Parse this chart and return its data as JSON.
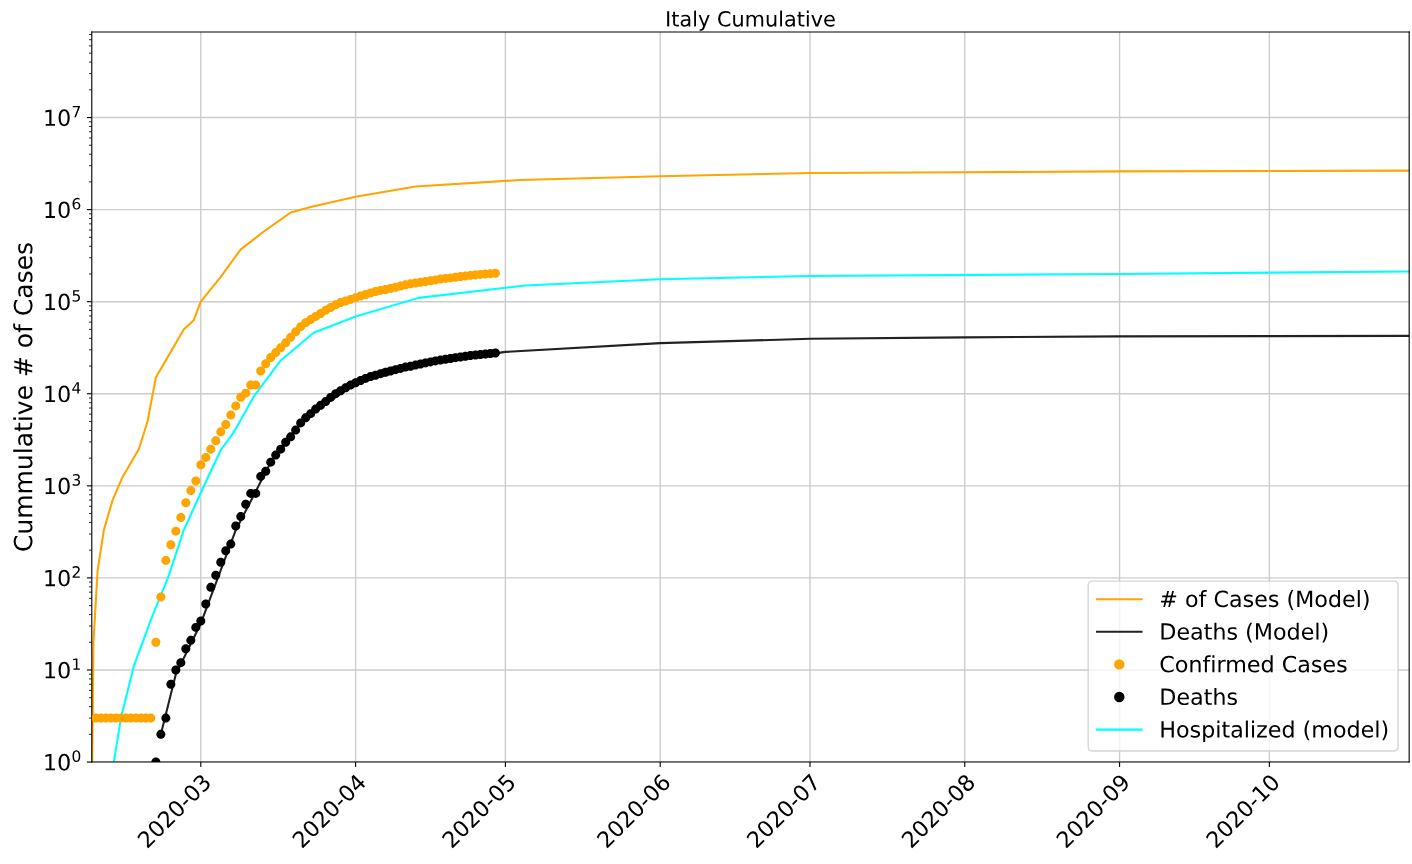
{
  "chart_data": {
    "type": "line",
    "title": "Italy Cumulative",
    "ylabel": "Cummulative # of Cases",
    "log": "y",
    "grid": true,
    "legend": "bottom right",
    "xlim": [
      "2020-02-08T04:00",
      "2020-10-29"
    ],
    "xticks": [
      {
        "value": "2020-03-01",
        "label": "2020-03"
      },
      {
        "value": "2020-04-01",
        "label": "2020-04"
      },
      {
        "value": "2020-05-01",
        "label": "2020-05"
      },
      {
        "value": "2020-06-01",
        "label": "2020-06"
      },
      {
        "value": "2020-07-01",
        "label": "2020-07"
      },
      {
        "value": "2020-08-01",
        "label": "2020-08"
      },
      {
        "value": "2020-09-01",
        "label": "2020-09"
      },
      {
        "value": "2020-10-01",
        "label": "2020-10"
      }
    ],
    "ylim": [
      1,
      85000000
    ],
    "yticks": [
      {
        "value": 1,
        "label": "10$^{0}$"
      },
      {
        "value": 10,
        "label": "10$^{1}$"
      },
      {
        "value": 100,
        "label": "10$^{2}$"
      },
      {
        "value": 1000,
        "label": "10$^{3}$"
      },
      {
        "value": 10000,
        "label": "10$^{4}$"
      },
      {
        "value": 100000,
        "label": "10$^{5}$"
      },
      {
        "value": 1000000,
        "label": "10$^{6}$"
      },
      {
        "value": 10000000,
        "label": "10$^{7}$"
      }
    ],
    "series": [
      {
        "name": "# of Cases (Model)",
        "color": "#ffa500",
        "x": [
          "2020-02-08T06:00",
          "2020-02-08T12:00",
          "2020-02-09T08:00",
          "2020-02-10T14:00",
          "2020-02-12T08:00",
          "2020-02-14T08:00",
          "2020-02-17T14:00",
          "2020-02-19T08:00",
          "2020-02-21",
          "2020-02-26T14:00",
          "2020-02-28T14:00",
          "2020-03-01",
          "2020-03-05",
          "2020-03-09",
          "2020-03-14",
          "2020-03-19",
          "2020-03-23",
          "2020-04-01",
          "2020-04-13",
          "2020-05-04",
          "2020-06-01",
          "2020-07-01",
          "2020-08-01",
          "2020-09-01",
          "2020-10-29"
        ],
        "values": [
          1,
          20,
          120,
          330,
          700,
          1250,
          2500,
          5000,
          15000,
          50000,
          63000,
          100000,
          186000,
          370000,
          600000,
          930000,
          1070000,
          1380000,
          1780000,
          2100000,
          2300000,
          2500000,
          2550000,
          2600000,
          2650000
        ]
      },
      {
        "name": "Deaths (Model)",
        "color": "#222222",
        "x": [
          "2020-02-22",
          "2020-02-25",
          "2020-03-01",
          "2020-03-08",
          "2020-03-15",
          "2020-03-22",
          "2020-04-01",
          "2020-04-15",
          "2020-05-01",
          "2020-06-01",
          "2020-07-01",
          "2020-08-01",
          "2020-09-01",
          "2020-10-29"
        ],
        "values": [
          2,
          9,
          32,
          330,
          1800,
          5500,
          13000,
          21000,
          28500,
          35500,
          39500,
          41000,
          42000,
          42500
        ]
      },
      {
        "name": "Confirmed Cases",
        "type": "scatter",
        "color": "#ffa500",
        "x": [
          "2020-02-09",
          "2020-02-10",
          "2020-02-11",
          "2020-02-12",
          "2020-02-13",
          "2020-02-14",
          "2020-02-15",
          "2020-02-16",
          "2020-02-17",
          "2020-02-18",
          "2020-02-19",
          "2020-02-20",
          "2020-02-21",
          "2020-02-22",
          "2020-02-23",
          "2020-02-24",
          "2020-02-25",
          "2020-02-26",
          "2020-02-27",
          "2020-02-28",
          "2020-02-29",
          "2020-03-01",
          "2020-03-02",
          "2020-03-03",
          "2020-03-04",
          "2020-03-05",
          "2020-03-06",
          "2020-03-07",
          "2020-03-08",
          "2020-03-09",
          "2020-03-10",
          "2020-03-11",
          "2020-03-12",
          "2020-03-13",
          "2020-03-14",
          "2020-03-15",
          "2020-03-16",
          "2020-03-17",
          "2020-03-18",
          "2020-03-19",
          "2020-03-20",
          "2020-03-21",
          "2020-03-22",
          "2020-03-23",
          "2020-03-24",
          "2020-03-25",
          "2020-03-26",
          "2020-03-27",
          "2020-03-28",
          "2020-03-29",
          "2020-03-30",
          "2020-03-31",
          "2020-04-01",
          "2020-04-02",
          "2020-04-03",
          "2020-04-04",
          "2020-04-05",
          "2020-04-06",
          "2020-04-07",
          "2020-04-08",
          "2020-04-09",
          "2020-04-10",
          "2020-04-11",
          "2020-04-12",
          "2020-04-13",
          "2020-04-14",
          "2020-04-15",
          "2020-04-16",
          "2020-04-17",
          "2020-04-18",
          "2020-04-19",
          "2020-04-20",
          "2020-04-21",
          "2020-04-22",
          "2020-04-23",
          "2020-04-24",
          "2020-04-25",
          "2020-04-26",
          "2020-04-27",
          "2020-04-28",
          "2020-04-29"
        ],
        "values": [
          3,
          3,
          3,
          3,
          3,
          3,
          3,
          3,
          3,
          3,
          3,
          3,
          20,
          62,
          155,
          229,
          322,
          453,
          655,
          888,
          1128,
          1694,
          2036,
          2502,
          3089,
          3858,
          4636,
          5883,
          7375,
          9172,
          10149,
          12462,
          12462,
          17660,
          21157,
          24747,
          27980,
          31506,
          35713,
          41035,
          47021,
          53578,
          59138,
          63927,
          69176,
          74386,
          80589,
          86498,
          92472,
          97689,
          101739,
          105792,
          110574,
          115242,
          119827,
          124632,
          128948,
          132547,
          135586,
          139422,
          143626,
          147577,
          152271,
          156363,
          159516,
          162488,
          165155,
          168941,
          172434,
          175925,
          178972,
          181228,
          183957,
          187327,
          189973,
          192994,
          195351,
          197675,
          199414,
          201505,
          203591
        ]
      },
      {
        "name": "Deaths",
        "type": "scatter",
        "color": "#000000",
        "x": [
          "2020-02-21",
          "2020-02-22",
          "2020-02-23",
          "2020-02-24",
          "2020-02-25",
          "2020-02-26",
          "2020-02-27",
          "2020-02-28",
          "2020-02-29",
          "2020-03-01",
          "2020-03-02",
          "2020-03-03",
          "2020-03-04",
          "2020-03-05",
          "2020-03-06",
          "2020-03-07",
          "2020-03-08",
          "2020-03-09",
          "2020-03-10",
          "2020-03-11",
          "2020-03-12",
          "2020-03-13",
          "2020-03-14",
          "2020-03-15",
          "2020-03-16",
          "2020-03-17",
          "2020-03-18",
          "2020-03-19",
          "2020-03-20",
          "2020-03-21",
          "2020-03-22",
          "2020-03-23",
          "2020-03-24",
          "2020-03-25",
          "2020-03-26",
          "2020-03-27",
          "2020-03-28",
          "2020-03-29",
          "2020-03-30",
          "2020-03-31",
          "2020-04-01",
          "2020-04-02",
          "2020-04-03",
          "2020-04-04",
          "2020-04-05",
          "2020-04-06",
          "2020-04-07",
          "2020-04-08",
          "2020-04-09",
          "2020-04-10",
          "2020-04-11",
          "2020-04-12",
          "2020-04-13",
          "2020-04-14",
          "2020-04-15",
          "2020-04-16",
          "2020-04-17",
          "2020-04-18",
          "2020-04-19",
          "2020-04-20",
          "2020-04-21",
          "2020-04-22",
          "2020-04-23",
          "2020-04-24",
          "2020-04-25",
          "2020-04-26",
          "2020-04-27",
          "2020-04-28",
          "2020-04-29"
        ],
        "values": [
          1,
          2,
          3,
          7,
          10,
          12,
          17,
          21,
          29,
          34,
          52,
          79,
          107,
          148,
          197,
          233,
          366,
          463,
          631,
          827,
          827,
          1266,
          1441,
          1809,
          2158,
          2503,
          2978,
          3405,
          4032,
          4825,
          5476,
          6077,
          6820,
          7503,
          8215,
          9134,
          10023,
          10779,
          11591,
          12428,
          13155,
          13915,
          14681,
          15362,
          15887,
          16523,
          17127,
          17669,
          18279,
          18849,
          19468,
          19899,
          20465,
          21067,
          21645,
          22170,
          22745,
          23227,
          23660,
          24114,
          24648,
          25085,
          25549,
          25969,
          26384,
          26644,
          26977,
          27359,
          27682
        ]
      },
      {
        "name": "Hospitalized (model)",
        "color": "#00ffff",
        "x": [
          "2020-02-12T14:00",
          "2020-02-14",
          "2020-02-16T14:00",
          "2020-02-20",
          "2020-02-23T10:00",
          "2020-02-26T14:00",
          "2020-03-01",
          "2020-03-05",
          "2020-03-07T14:00",
          "2020-03-11T14:00",
          "2020-03-17",
          "2020-03-23T14:00",
          "2020-04-01",
          "2020-04-13T14:00",
          "2020-05-05",
          "2020-06-01",
          "2020-07-01",
          "2020-09-01",
          "2020-10-29"
        ],
        "values": [
          1,
          3,
          11,
          35,
          100,
          330,
          840,
          2450,
          3800,
          9300,
          23000,
          46000,
          69000,
          110000,
          150000,
          175000,
          190000,
          200000,
          213000
        ]
      }
    ]
  }
}
